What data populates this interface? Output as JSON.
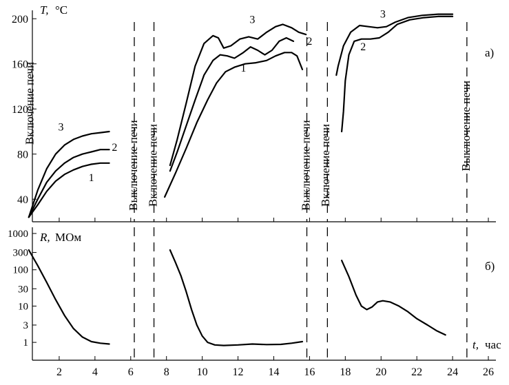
{
  "chart_data": [
    {
      "panel": "a",
      "type": "line",
      "panel_label": "а)",
      "ylabel_symbol": "T,",
      "ylabel_unit": "°C",
      "xlim": [
        0,
        27
      ],
      "ylim": [
        20,
        205
      ],
      "yticks": [
        40,
        80,
        120,
        160,
        200
      ],
      "series": [
        {
          "name": "1",
          "segments": [
            [
              [
                0.3,
                24
              ],
              [
                0.8,
                35
              ],
              [
                1.3,
                47
              ],
              [
                1.8,
                56
              ],
              [
                2.3,
                62
              ],
              [
                2.8,
                66
              ],
              [
                3.3,
                69
              ],
              [
                3.8,
                71
              ],
              [
                4.3,
                72
              ],
              [
                4.8,
                72
              ]
            ],
            [
              [
                7.9,
                42
              ],
              [
                8.5,
                63
              ],
              [
                9.1,
                85
              ],
              [
                9.7,
                108
              ],
              [
                10.3,
                128
              ],
              [
                10.8,
                143
              ],
              [
                11.3,
                153
              ],
              [
                11.8,
                157
              ],
              [
                12.4,
                160
              ],
              [
                13.0,
                161
              ],
              [
                13.6,
                163
              ],
              [
                14.1,
                167
              ],
              [
                14.6,
                170
              ],
              [
                15.0,
                170
              ],
              [
                15.3,
                167
              ],
              [
                15.6,
                155
              ]
            ]
          ]
        },
        {
          "name": "2",
          "segments": [
            [
              [
                0.3,
                24
              ],
              [
                0.8,
                40
              ],
              [
                1.3,
                55
              ],
              [
                1.8,
                65
              ],
              [
                2.3,
                72
              ],
              [
                2.8,
                77
              ],
              [
                3.3,
                80
              ],
              [
                3.8,
                82
              ],
              [
                4.3,
                84
              ],
              [
                4.8,
                84
              ]
            ],
            [
              [
                8.2,
                65
              ],
              [
                8.6,
                82
              ],
              [
                9.1,
                105
              ],
              [
                9.6,
                128
              ],
              [
                10.1,
                150
              ],
              [
                10.6,
                163
              ],
              [
                11.0,
                168
              ],
              [
                11.4,
                167
              ],
              [
                11.8,
                165
              ],
              [
                12.3,
                170
              ],
              [
                12.7,
                175
              ],
              [
                13.1,
                172
              ],
              [
                13.5,
                168
              ],
              [
                13.9,
                172
              ],
              [
                14.3,
                180
              ],
              [
                14.7,
                183
              ],
              [
                15.1,
                180
              ]
            ],
            [
              [
                17.8,
                100
              ],
              [
                17.9,
                118
              ],
              [
                18.0,
                145
              ],
              [
                18.2,
                168
              ],
              [
                18.5,
                180
              ],
              [
                18.9,
                182
              ],
              [
                19.4,
                182
              ],
              [
                19.9,
                183
              ],
              [
                20.4,
                188
              ],
              [
                20.9,
                195
              ],
              [
                21.6,
                199
              ],
              [
                22.4,
                201
              ],
              [
                23.2,
                202
              ],
              [
                24.0,
                202
              ]
            ]
          ]
        },
        {
          "name": "3",
          "segments": [
            [
              [
                0.3,
                24
              ],
              [
                0.8,
                48
              ],
              [
                1.3,
                67
              ],
              [
                1.8,
                80
              ],
              [
                2.3,
                88
              ],
              [
                2.8,
                93
              ],
              [
                3.3,
                96
              ],
              [
                3.8,
                98
              ],
              [
                4.3,
                99
              ],
              [
                4.8,
                100
              ]
            ],
            [
              [
                8.2,
                70
              ],
              [
                8.6,
                93
              ],
              [
                9.1,
                125
              ],
              [
                9.6,
                158
              ],
              [
                10.1,
                178
              ],
              [
                10.6,
                185
              ],
              [
                10.9,
                183
              ],
              [
                11.2,
                174
              ],
              [
                11.6,
                176
              ],
              [
                12.1,
                182
              ],
              [
                12.6,
                184
              ],
              [
                13.1,
                182
              ],
              [
                13.6,
                188
              ],
              [
                14.1,
                193
              ],
              [
                14.5,
                195
              ],
              [
                15.0,
                192
              ],
              [
                15.4,
                188
              ],
              [
                15.8,
                186
              ]
            ],
            [
              [
                17.5,
                150
              ],
              [
                17.6,
                158
              ],
              [
                17.9,
                176
              ],
              [
                18.3,
                188
              ],
              [
                18.8,
                194
              ],
              [
                19.3,
                193
              ],
              [
                19.8,
                192
              ],
              [
                20.3,
                193
              ],
              [
                20.8,
                197
              ],
              [
                21.5,
                201
              ],
              [
                22.3,
                203
              ],
              [
                23.2,
                204
              ],
              [
                24.0,
                204
              ]
            ]
          ]
        }
      ],
      "series_labels": [
        {
          "name": "1",
          "x": 3.8,
          "y": 56
        },
        {
          "name": "2",
          "x": 5.1,
          "y": 83
        },
        {
          "name": "3",
          "x": 2.1,
          "y": 101
        },
        {
          "name": "1",
          "x": 12.3,
          "y": 153
        },
        {
          "name": "2",
          "x": 16.0,
          "y": 177
        },
        {
          "name": "3",
          "x": 12.8,
          "y": 196
        },
        {
          "name": "2",
          "x": 19.0,
          "y": 172
        },
        {
          "name": "3",
          "x": 20.1,
          "y": 201
        }
      ],
      "annotations": [
        {
          "text": "Включение печи",
          "x": 0.55,
          "y": 125
        },
        {
          "text": "Выключение печи",
          "x": 6.35,
          "y": 70
        },
        {
          "text": "Включение печи",
          "x": 7.45,
          "y": 70
        },
        {
          "text": "Выключение печи",
          "x": 16.0,
          "y": 70
        },
        {
          "text": "Включение печи",
          "x": 17.1,
          "y": 70
        },
        {
          "text": "Выключение печи",
          "x": 24.95,
          "y": 105
        }
      ]
    },
    {
      "panel": "b",
      "type": "line",
      "panel_label": "б)",
      "ylabel_symbol": "R,",
      "ylabel_unit": "МОм",
      "y_scale": "log",
      "ylim": [
        0.35,
        1400
      ],
      "yticks": [
        1,
        3,
        10,
        30,
        100,
        300,
        1000
      ],
      "ytick_labels": [
        "1",
        "3",
        "10",
        "30",
        "100",
        "300",
        "1000"
      ],
      "xlabel_symbol": "t,",
      "xlabel_unit": "час",
      "xlim": [
        0,
        27
      ],
      "xticks": [
        2,
        4,
        6,
        8,
        10,
        12,
        14,
        16,
        18,
        20,
        22,
        24,
        26
      ],
      "series": [
        {
          "name": "R",
          "segments": [
            [
              [
                0.3,
                350
              ],
              [
                0.8,
                130
              ],
              [
                1.3,
                45
              ],
              [
                1.8,
                15
              ],
              [
                2.3,
                5.5
              ],
              [
                2.8,
                2.4
              ],
              [
                3.3,
                1.4
              ],
              [
                3.8,
                1.05
              ],
              [
                4.3,
                0.95
              ],
              [
                4.8,
                0.9
              ]
            ],
            [
              [
                8.2,
                350
              ],
              [
                8.5,
                160
              ],
              [
                8.8,
                70
              ],
              [
                9.1,
                25
              ],
              [
                9.4,
                8
              ],
              [
                9.7,
                3
              ],
              [
                10.0,
                1.5
              ],
              [
                10.3,
                1.0
              ],
              [
                10.7,
                0.85
              ],
              [
                11.2,
                0.82
              ],
              [
                12.0,
                0.85
              ],
              [
                12.8,
                0.9
              ],
              [
                13.6,
                0.87
              ],
              [
                14.4,
                0.88
              ],
              [
                15.0,
                0.95
              ],
              [
                15.6,
                1.05
              ]
            ],
            [
              [
                17.8,
                180
              ],
              [
                18.2,
                65
              ],
              [
                18.6,
                20
              ],
              [
                18.9,
                10
              ],
              [
                19.2,
                8
              ],
              [
                19.5,
                9.5
              ],
              [
                19.8,
                13
              ],
              [
                20.1,
                14
              ],
              [
                20.5,
                13
              ],
              [
                21.0,
                10
              ],
              [
                21.5,
                7
              ],
              [
                22.0,
                4.5
              ],
              [
                22.6,
                3
              ],
              [
                23.1,
                2.1
              ],
              [
                23.6,
                1.6
              ]
            ]
          ]
        }
      ],
      "panel_ylabel_position": "top-left"
    }
  ],
  "events": [
    {
      "label": "Выключение печи",
      "x": 6.2
    },
    {
      "label": "Включение печи",
      "x": 7.3
    },
    {
      "label": "Выключение печи",
      "x": 15.85
    },
    {
      "label": "Включение печи",
      "x": 17.0
    },
    {
      "label": "Выключение печи",
      "x": 24.8
    }
  ]
}
